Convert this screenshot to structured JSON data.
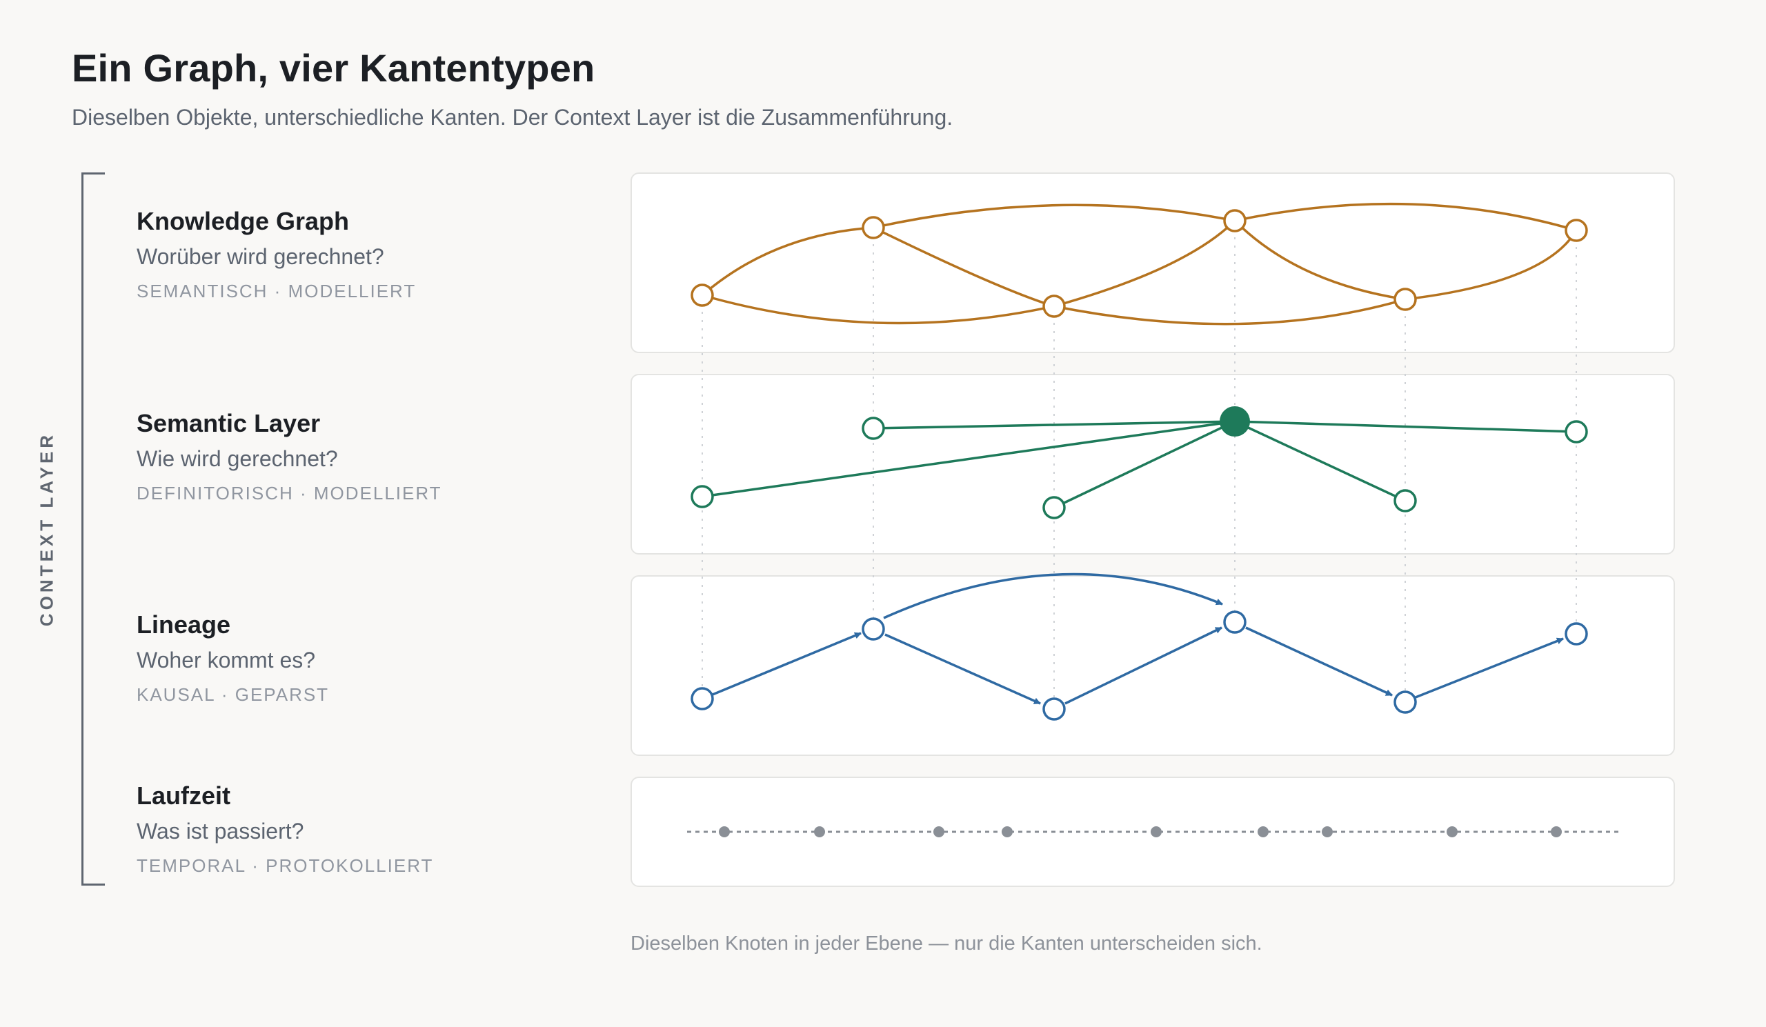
{
  "header": {
    "title": "Ein Graph, vier Kantentypen",
    "subtitle": "Dieselben Objekte, unterschiedliche Kanten. Der Context Layer ist die Zusammenführung."
  },
  "context_layer_label": "CONTEXT LAYER",
  "rows": [
    {
      "title": "Knowledge Graph",
      "question": "Worüber wird gerechnet?",
      "tag": "SEMANTISCH · MODELLIERT",
      "color": "#b5731f"
    },
    {
      "title": "Semantic Layer",
      "question": "Wie wird gerechnet?",
      "tag": "DEFINITORISCH · MODELLIERT",
      "color": "#1e7a5a"
    },
    {
      "title": "Lineage",
      "question": "Woher kommt es?",
      "tag": "KAUSAL · GEPARST",
      "color": "#2f6aa3"
    },
    {
      "title": "Laufzeit",
      "question": "Was ist passiert?",
      "tag": "TEMPORAL · PROTOKOLLIERT",
      "color": "#8a8f96"
    }
  ],
  "caption": "Dieselben Knoten in jeder Ebene — nur die Kanten unterscheiden sich."
}
